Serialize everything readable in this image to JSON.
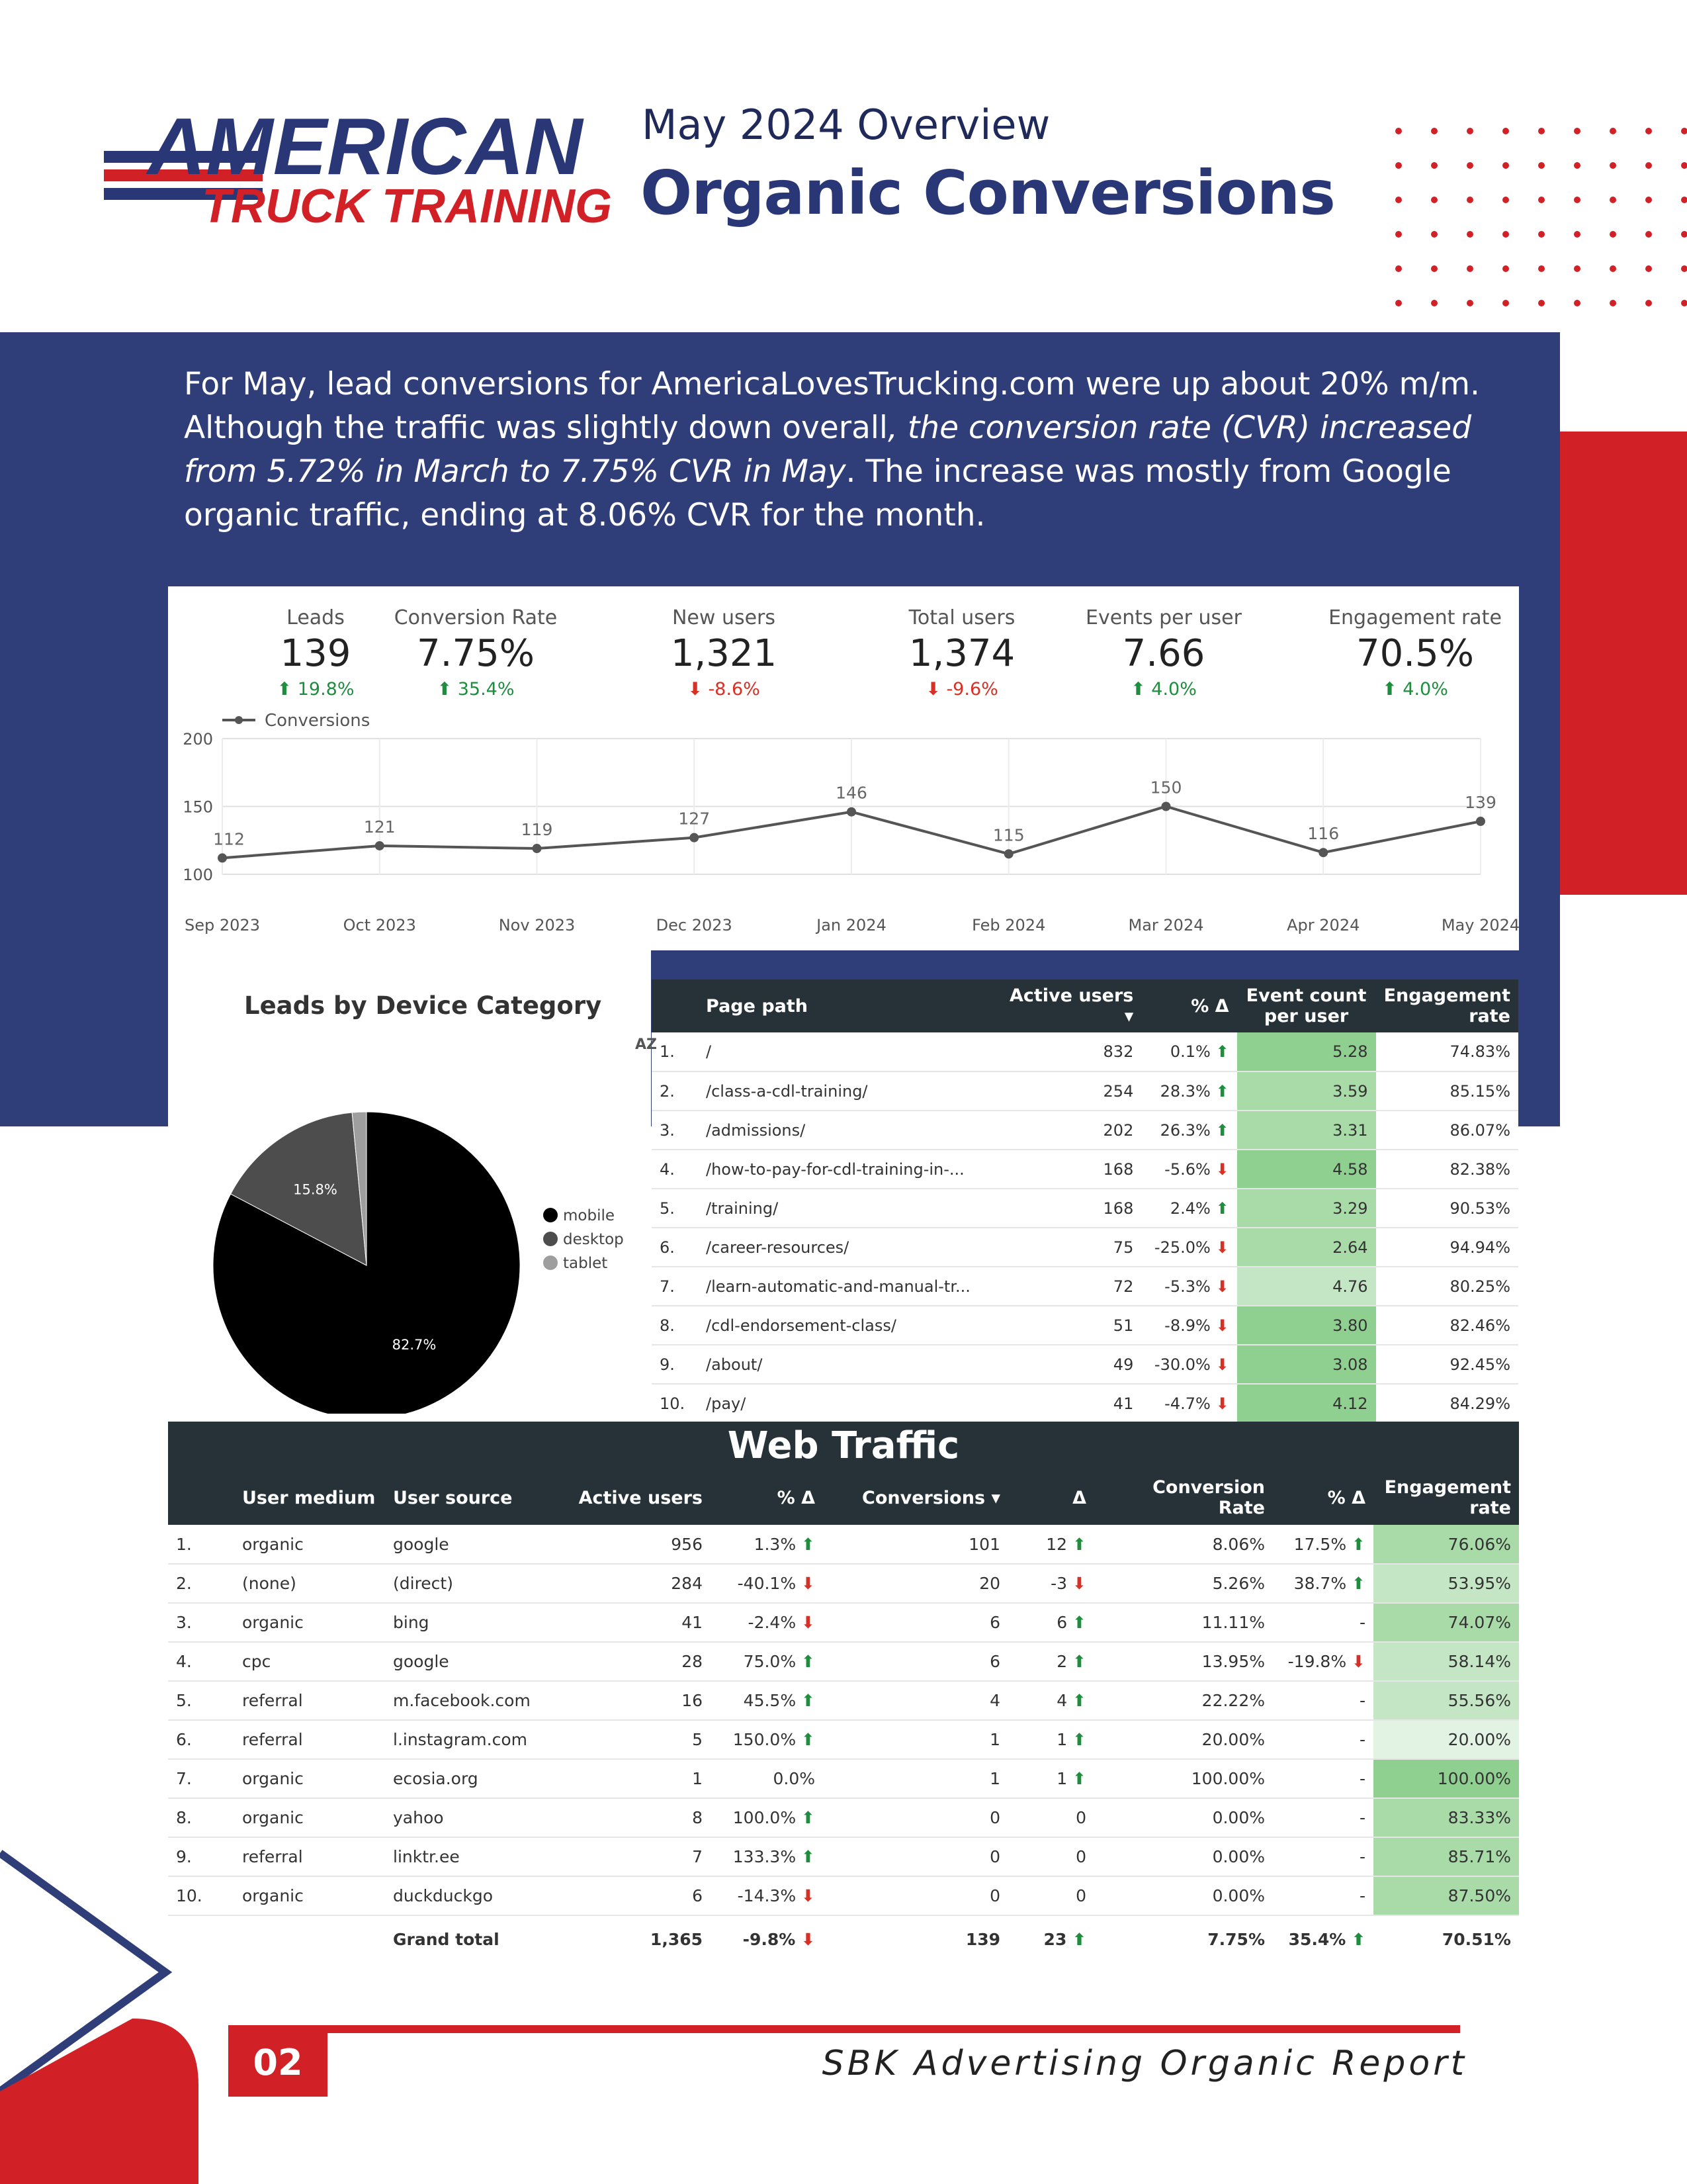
{
  "colors": {
    "navy": "#2f3d78",
    "red": "#d22027",
    "dark_header": "#263238",
    "positive": "#1e8e3e",
    "negative": "#d93025"
  },
  "logo": {
    "line1": "AMERICAN",
    "line2": "TRUCK TRAINING"
  },
  "header": {
    "subtitle": "May 2024 Overview",
    "title": "Organic Conversions"
  },
  "intro": {
    "part1": "For May, lead conversions for AmericaLovesTrucking.com were up about 20% m/m. Although the traffic was slightly down overall",
    "italic": ", the conversion rate (CVR) increased from 5.72% in March to 7.75% CVR in May",
    "part2": ". The increase was mostly from Google organic traffic, ending at 8.06% CVR for the month."
  },
  "kpis": [
    {
      "label": "Leads",
      "value": "139",
      "delta": "19.8%",
      "dir": "up"
    },
    {
      "label": "Conversion Rate",
      "value": "7.75%",
      "delta": "35.4%",
      "dir": "up"
    },
    {
      "label": "New users",
      "value": "1,321",
      "delta": "-8.6%",
      "dir": "down"
    },
    {
      "label": "Total users",
      "value": "1,374",
      "delta": "-9.6%",
      "dir": "down"
    },
    {
      "label": "Events per user",
      "value": "7.66",
      "delta": "4.0%",
      "dir": "up"
    },
    {
      "label": "Engagement rate",
      "value": "70.5%",
      "delta": "4.0%",
      "dir": "up"
    }
  ],
  "chart_data": [
    {
      "type": "line",
      "categories": [
        "Sep 2023",
        "Oct 2023",
        "Nov 2023",
        "Dec 2023",
        "Jan 2024",
        "Feb 2024",
        "Mar 2024",
        "Apr 2024",
        "May 2024"
      ],
      "series": [
        {
          "name": "Conversions",
          "values": [
            112,
            121,
            119,
            127,
            146,
            115,
            150,
            116,
            139
          ]
        }
      ],
      "yticks": [
        100,
        150,
        200
      ],
      "ylim": [
        100,
        200
      ],
      "grid": true,
      "legend": "top-left"
    },
    {
      "type": "pie",
      "title": "Leads by Device Category",
      "labels": [
        "mobile",
        "desktop",
        "tablet"
      ],
      "values": [
        82.7,
        15.8,
        1.5
      ],
      "value_labels": [
        "82.7%",
        "15.8%",
        ""
      ],
      "colors": [
        "#000000",
        "#4d4d4d",
        "#9e9e9e"
      ],
      "legend": "right"
    }
  ],
  "page_table": {
    "sort_icon": "AZ",
    "headers": {
      "page_path": "Page path",
      "active_users": "Active users",
      "active_sort": "▾",
      "pct": "% Δ",
      "event_count": "Event count per user",
      "engagement": "Engagement rate"
    },
    "rows": [
      {
        "rank": "1.",
        "path": "/",
        "users": "832",
        "pct": "0.1%",
        "dir": "up",
        "events": "5.28",
        "shade": "g-strong",
        "eng": "74.83%"
      },
      {
        "rank": "2.",
        "path": "/class-a-cdl-training/",
        "users": "254",
        "pct": "28.3%",
        "dir": "up",
        "events": "3.59",
        "shade": "g-mid",
        "eng": "85.15%"
      },
      {
        "rank": "3.",
        "path": "/admissions/",
        "users": "202",
        "pct": "26.3%",
        "dir": "up",
        "events": "3.31",
        "shade": "g-mid",
        "eng": "86.07%"
      },
      {
        "rank": "4.",
        "path": "/how-to-pay-for-cdl-training-in-...",
        "users": "168",
        "pct": "-5.6%",
        "dir": "down",
        "events": "4.58",
        "shade": "g-strong",
        "eng": "82.38%"
      },
      {
        "rank": "5.",
        "path": "/training/",
        "users": "168",
        "pct": "2.4%",
        "dir": "up",
        "events": "3.29",
        "shade": "g-mid",
        "eng": "90.53%"
      },
      {
        "rank": "6.",
        "path": "/career-resources/",
        "users": "75",
        "pct": "-25.0%",
        "dir": "down",
        "events": "2.64",
        "shade": "g-mid",
        "eng": "94.94%"
      },
      {
        "rank": "7.",
        "path": "/learn-automatic-and-manual-tr...",
        "users": "72",
        "pct": "-5.3%",
        "dir": "down",
        "events": "4.76",
        "shade": "g-light",
        "eng": "80.25%"
      },
      {
        "rank": "8.",
        "path": "/cdl-endorsement-class/",
        "users": "51",
        "pct": "-8.9%",
        "dir": "down",
        "events": "3.80",
        "shade": "g-strong",
        "eng": "82.46%"
      },
      {
        "rank": "9.",
        "path": "/about/",
        "users": "49",
        "pct": "-30.0%",
        "dir": "down",
        "events": "3.08",
        "shade": "g-strong",
        "eng": "92.45%"
      },
      {
        "rank": "10.",
        "path": "/pay/",
        "users": "41",
        "pct": "-4.7%",
        "dir": "down",
        "events": "4.12",
        "shade": "g-strong",
        "eng": "84.29%"
      }
    ]
  },
  "web_traffic": {
    "title": "Web Traffic",
    "headers": {
      "medium": "User medium",
      "source": "User source",
      "active_users": "Active users",
      "pct1": "% Δ",
      "conversions": "Conversions",
      "conv_sort": "▾",
      "delta": "Δ",
      "cvr": "Conversion Rate",
      "pct2": "% Δ",
      "engagement": "Engagement rate"
    },
    "rows": [
      {
        "rank": "1.",
        "medium": "organic",
        "source": "google",
        "users": "956",
        "pct1": "1.3%",
        "dir1": "up",
        "conv": "101",
        "delta": "12",
        "ddir": "up",
        "cvr": "8.06%",
        "pct2": "17.5%",
        "dir2": "up",
        "eng": "76.06%",
        "shade": "g-mid"
      },
      {
        "rank": "2.",
        "medium": "(none)",
        "source": "(direct)",
        "users": "284",
        "pct1": "-40.1%",
        "dir1": "down",
        "conv": "20",
        "delta": "-3",
        "ddir": "down",
        "cvr": "5.26%",
        "pct2": "38.7%",
        "dir2": "up",
        "eng": "53.95%",
        "shade": "g-light"
      },
      {
        "rank": "3.",
        "medium": "organic",
        "source": "bing",
        "users": "41",
        "pct1": "-2.4%",
        "dir1": "down",
        "conv": "6",
        "delta": "6",
        "ddir": "up",
        "cvr": "11.11%",
        "pct2": "-",
        "dir2": "none",
        "eng": "74.07%",
        "shade": "g-mid"
      },
      {
        "rank": "4.",
        "medium": "cpc",
        "source": "google",
        "users": "28",
        "pct1": "75.0%",
        "dir1": "up",
        "conv": "6",
        "delta": "2",
        "ddir": "up",
        "cvr": "13.95%",
        "pct2": "-19.8%",
        "dir2": "down",
        "eng": "58.14%",
        "shade": "g-light"
      },
      {
        "rank": "5.",
        "medium": "referral",
        "source": "m.facebook.com",
        "users": "16",
        "pct1": "45.5%",
        "dir1": "up",
        "conv": "4",
        "delta": "4",
        "ddir": "up",
        "cvr": "22.22%",
        "pct2": "-",
        "dir2": "none",
        "eng": "55.56%",
        "shade": "g-light"
      },
      {
        "rank": "6.",
        "medium": "referral",
        "source": "l.instagram.com",
        "users": "5",
        "pct1": "150.0%",
        "dir1": "up",
        "conv": "1",
        "delta": "1",
        "ddir": "up",
        "cvr": "20.00%",
        "pct2": "-",
        "dir2": "none",
        "eng": "20.00%",
        "shade": "g-pale"
      },
      {
        "rank": "7.",
        "medium": "organic",
        "source": "ecosia.org",
        "users": "1",
        "pct1": "0.0%",
        "dir1": "none",
        "conv": "1",
        "delta": "1",
        "ddir": "up",
        "cvr": "100.00%",
        "pct2": "-",
        "dir2": "none",
        "eng": "100.00%",
        "shade": "g-strong"
      },
      {
        "rank": "8.",
        "medium": "organic",
        "source": "yahoo",
        "users": "8",
        "pct1": "100.0%",
        "dir1": "up",
        "conv": "0",
        "delta": "0",
        "ddir": "none",
        "cvr": "0.00%",
        "pct2": "-",
        "dir2": "none",
        "eng": "83.33%",
        "shade": "g-mid"
      },
      {
        "rank": "9.",
        "medium": "referral",
        "source": "linktr.ee",
        "users": "7",
        "pct1": "133.3%",
        "dir1": "up",
        "conv": "0",
        "delta": "0",
        "ddir": "none",
        "cvr": "0.00%",
        "pct2": "-",
        "dir2": "none",
        "eng": "85.71%",
        "shade": "g-mid"
      },
      {
        "rank": "10.",
        "medium": "organic",
        "source": "duckduckgo",
        "users": "6",
        "pct1": "-14.3%",
        "dir1": "down",
        "conv": "0",
        "delta": "0",
        "ddir": "none",
        "cvr": "0.00%",
        "pct2": "-",
        "dir2": "none",
        "eng": "87.50%",
        "shade": "g-mid"
      }
    ],
    "total": {
      "label": "Grand total",
      "users": "1,365",
      "pct1": "-9.8%",
      "dir1": "down",
      "conv": "139",
      "delta": "23",
      "ddir": "up",
      "cvr": "7.75%",
      "pct2": "35.4%",
      "dir2": "up",
      "eng": "70.51%"
    }
  },
  "footer": {
    "page_number": "02",
    "text": "SBK Advertising Organic Report"
  }
}
